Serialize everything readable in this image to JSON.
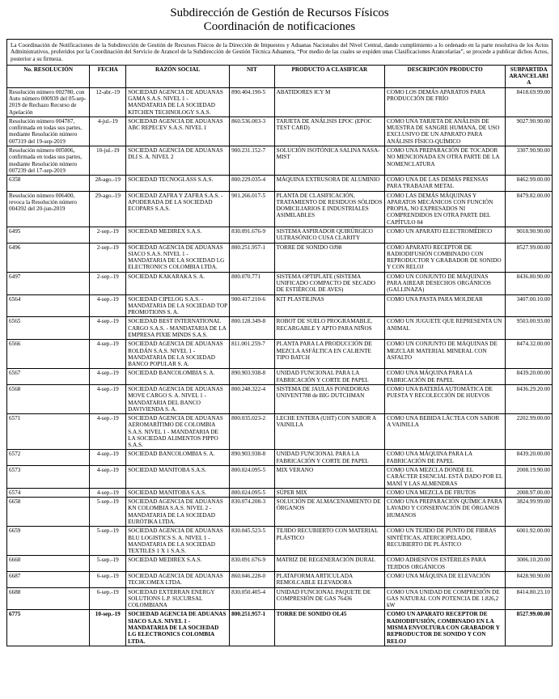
{
  "title": {
    "line1": "Subdirección de Gestión de Recursos Físicos",
    "line2": "Coordinación de notificaciones"
  },
  "intro": "La Coordinación de Notificaciones de la Subdirección de Gestión de Recursos Físicos de la Dirección de Impuestos y Aduanas Nacionales del Nivel Central, dando cumplimiento a lo ordenado en la parte resolutiva de los Actos Administrativos, proferidos por la Coordinación del Servicio de Arancel de la Subdirección de Gestión Técnica Aduanera, “Por medio de las cuales se expiden unas Clasificaciones Arancelarias”, se procede a publicar dichos Actos, posterior a su firmeza.",
  "headers": {
    "resolucion": "No. RESOLUCIÓN",
    "fecha": "FECHA",
    "razon": "RAZÓN SOCIAL",
    "nit": "NIT",
    "producto": "PRODUCTO A CLASIFICAR",
    "descripcion": "DESCRIPCIÓN PRODUCTO",
    "subpartida": "SUBPARTIDA ARANCELARIA"
  },
  "rows": [
    {
      "res": "Resolución número 002780, con Auto número 000939 del 05-sep-2019 de Rechazo Recurso de Apelación",
      "fecha": "12-abr.-19",
      "razon": "SOCIEDAD AGENCIA DE ADUANAS GAMA S.A.S. NIVEL 1 - MANDATARIA DE LA SOCIEDAD KITCHEN TECHNOLOGY S.A.S.",
      "nit": "890.404.190-5",
      "prod": "ABATIDORES ICY M",
      "desc": "COMO LOS DEMÁS APARATOS PARA PRODUCCIÓN DE FRÍO",
      "sub": "8418.69.99.00"
    },
    {
      "res": "Resolución número 004787, confirmada en todas sus partes, mediante Resolución número 007319 del 19-sep-2019",
      "fecha": "4-jul.-19",
      "razon": "SOCIEDAD AGENCIA DE ADUANAS ABC REPECEV S.A.S. NIVEL 1",
      "nit": "860.536.003-3",
      "prod": "TARJETA DE ANÁLISIS EPOC (EPOC TEST CARD)",
      "desc": "COMO UNA TARJETA DE ANÁLISIS DE MUESTRA DE SANGRE HUMANA, DE USO EXCLUSIVO DE UN APARATO PARA ANÁLISIS FÍSICO-QUÍMICO",
      "sub": "9027.90.90.00"
    },
    {
      "res": "Resolución número 005006, confirmada en todas sus partes, mediante Resolución número 007239 del 17-sep-2019",
      "fecha": "10-jul.-19",
      "razon": "SOCIEDAD AGENCIA DE ADUANAS DLI S. A. NIVEL 2",
      "nit": "900.231.152-7",
      "prod": "SOLUCIÓN ISOTÓNICA SALINA NASA-MIST",
      "desc": "COMO UNA PREPARACIÓN DE TOCADOR NO MENCIONADA EN OTRA PARTE DE LA NOMENCLATURA",
      "sub": "3307.90.90.00"
    },
    {
      "res": "6358",
      "fecha": "28-ago.-19",
      "razon": "SOCIEDAD TECNOGLASS S.A.S.",
      "nit": "800.229.035-4",
      "prod": "MÁQUINA EXTRUSORA DE ALUMINIO",
      "desc": "COMO UNA DE LAS DEMÁS PRENSAS PARA TRABAJAR METAL",
      "sub": "8462.99.00.00"
    },
    {
      "res": "Resolución número 006400, revoca la Resolución número 004392 del 20-jun-2019",
      "fecha": "29-ago.-19",
      "razon": "SOCIEDAD ZAFRA Y ZAFRA S.A.S. - APODERADA DE LA SOCIEDAD ECOPARS S.A.S.",
      "nit": "901.266.017-5",
      "prod": "PLANTA DE CLASIFICACIÓN, TRATAMIENTO DE RESIDUOS SÓLIDOS DOMICILIARIOS E INDUSTRIALES ASIMILABLES",
      "desc": "COMO LAS DEMÁS MÁQUINAS Y APARATOS MECÁNICOS CON FUNCIÓN PROPIA, NO EXPRESADOS NI COMPRENDIDOS EN OTRA PARTE DEL CAPÍTULO 84",
      "sub": "8479.82.00.00"
    },
    {
      "res": "6495",
      "fecha": "2-sep.-19",
      "razon": "SOCIEDAD MEDIREX S.A.S.",
      "nit": "830.091.676-9",
      "prod": "SISTEMA ASPIRADOR QUIRÚRGICO ULTRASÓNICO CUSA CLARITY",
      "desc": "COMO UN APARATO ELECTROMÉDICO",
      "sub": "9018.90.90.00"
    },
    {
      "res": "6496",
      "fecha": "2-sep.-19",
      "razon": "SOCIEDAD AGENCIA DE ADUANAS SIACO S.A.S. NIVEL 1 - MANDATARIA DE LA SOCIEDAD LG ELECTRONICS COLOMBIA LTDA.",
      "nit": "800.251.957-1",
      "prod": "TORRE DE SONIDO OJ98",
      "desc": "COMO APARATO RECEPTOR DE RADIODIFUSIÓN COMBINADO CON REPRODUCTOR Y GRABADOR DE SONIDO Y CON RELOJ",
      "sub": "8527.99.00.00"
    },
    {
      "res": "6497",
      "fecha": "2-sep.-19",
      "razon": "SOCIEDAD KAKARAKA S. A.",
      "nit": "800.070.771",
      "prod": "SISTEMA OPTIPLATE (SISTEMA UNIFICADO COMPACTO DE SECADO DE ESTIÉRCOL DE AVES)",
      "desc": "COMO UN CONJUNTO DE MÁQUINAS PARA AIREAR DESECHOS ORGÁNICOS (GALLINAZA)",
      "sub": "8436.80.90.00"
    },
    {
      "res": "6564",
      "fecha": "4-sep.-19",
      "razon": "SOCIEDAD CIPELOG S.A.S. - MANDATARIA DE LA SOCIEDAD TOP PROMOTIONS S. A.",
      "nit": "900.417.210-6",
      "prod": "KIT PLASTILINAS",
      "desc": "COMO UNA PASTA PARA MOLDEAR",
      "sub": "3407.00.10.00"
    },
    {
      "res": "6565",
      "fecha": "4-sep.-19",
      "razon": "SOCIEDAD BEST INTERNATIONAL CARGO S.A.S. - MANDATARIA DE LA EMPRESA PIXIE MINDS S.A.S.",
      "nit": "800.128.349-8",
      "prod": "ROBOT DE SUELO PROGRAMABLE, RECARGABLE Y APTO PARA NIÑOS",
      "desc": "COMO UN JUGUETE QUE REPRESENTA UN ANIMAL",
      "sub": "9503.00.93.00"
    },
    {
      "res": "6566",
      "fecha": "4-sep.-19",
      "razon": "SOCIEDAD AGENCIA DE ADUANAS ROLDÁN S.A.S. NIVEL 1 - MANDATARIA DE LA SOCIEDAD BANCO POPULAR S. A.",
      "nit": "811.001.259-7",
      "prod": "PLANTA PARA LA PRODUCCIÓN DE MEZCLA ASFÁLTICA EN CALIENTE TIPO BATCH",
      "desc": "COMO UN CONJUNTO DE MÁQUINAS DE MEZCLAR MATERIAL MINERAL CON ASFALTO",
      "sub": "8474.32.00.00"
    },
    {
      "res": "6567",
      "fecha": "4-sep.-19",
      "razon": "SOCIEDAD BANCOLOMBIA S. A.",
      "nit": "890.903.938-8",
      "prod": "UNIDAD FUNCIONAL PARA LA FABRICACIÓN Y CORTE DE PAPEL",
      "desc": "COMO UNA MÁQUINA PARA LA FABRICACIÓN DE PAPEL",
      "sub": "8439.20.00.00"
    },
    {
      "res": "6568",
      "fecha": "4-sep.-19",
      "razon": "SOCIEDAD AGENCIA DE ADUANAS MOVE CARGO S. A. NIVEL 1 - MANDATARIA DEL BANCO DAVIVIENDA S. A.",
      "nit": "800.248.322-4",
      "prod": "SISTEMA DE JAULAS PONEDORAS UNIVENT788 de BIG DUTCHMAN",
      "desc": "COMO UNA BATERÍA AUTOMÁTICA DE PUESTA Y RECOLECCIÓN DE HUEVOS",
      "sub": "8436.29.20.00"
    },
    {
      "res": "6571",
      "fecha": "4-sep.-19",
      "razon": "SOCIEDAD AGENCIA DE ADUANAS AEROMARÍTIMO DE COLOMBIA S.A.S. NIVEL 1 - MANDATARIA DE LA SOCIEDAD ALIMENTOS PIPPO S.A.S.",
      "nit": "800.035.023-2",
      "prod": "LECHE ENTERA (UHT) CON SABOR A VAINILLA",
      "desc": "COMO UNA BEBIDA LÁCTEA CON SABOR A VAINILLA",
      "sub": "2202.99.00.00"
    },
    {
      "res": "6572",
      "fecha": "4-sep.-19",
      "razon": "SOCIEDAD BANCOLOMBIA S. A.",
      "nit": "890.903.938-8",
      "prod": "UNIDAD FUNCIONAL PARA LA FABRICACIÓN Y CORTE DE PAPEL",
      "desc": "COMO UNA MÁQUINA PARA LA FABRICACIÓN DE PAPEL",
      "sub": "8439.20.00.00"
    },
    {
      "res": "6573",
      "fecha": "4-sep.-19",
      "razon": "SOCIEDAD MANITOBA S.A.S.",
      "nit": "800.024.095-5",
      "prod": "MIX VERANO",
      "desc": "COMO UNA MEZCLA DONDE EL CARÁCTER ESENCIAL ESTÁ DADO POR EL MANÍ Y LAS ALMENDRAS",
      "sub": "2008.19.90.00"
    },
    {
      "res": "6574",
      "fecha": "4-sep.-19",
      "razon": "SOCIEDAD MANITOBA S.A.S.",
      "nit": "800.024.095-5",
      "prod": "SÚPER MIX",
      "desc": "COMO UNA MEZCLA DE FRUTOS",
      "sub": "2008.97.00.00"
    },
    {
      "res": "6658",
      "fecha": "5-sep.-19",
      "razon": "SOCIEDAD AGENCIA DE ADUANAS KN COLOMBIA S.A.S. NIVEL 2 - MANDATARIA DE LA SOCIEDAD EURÓTIKA LTDA.",
      "nit": "830.074.208-3",
      "prod": "SOLUCIÓN DE ALMACENAMIENTO DE ÓRGANOS",
      "desc": "COMO UNA PREPARACIÓN QUÍMICA PARA LAVADO Y CONSERVACIÓN DE ÓRGANOS HUMANOS",
      "sub": "3824.99.99.00"
    },
    {
      "res": "6659",
      "fecha": "5-sep.-19",
      "razon": "SOCIEDAD AGENCIA DE ADUANAS BLU LOGISTICS S. A. NIVEL 1 - MANDATARIA DE LA SOCIEDAD TEXTILES 1 X 1 S.A.S.",
      "nit": "830.045.523-5",
      "prod": "TEJIDO RECUBIERTO CON MATERIAL PLÁSTICO",
      "desc": "COMO UN TEJIDO DE PUNTO DE FIBRAS SINTÉTICAS, ATERCIOPELADO, RECUBIERTO DE PLÁSTICO",
      "sub": "6001.92.00.00"
    },
    {
      "res": "6660",
      "fecha": "5-sep.-19",
      "razon": "SOCIEDAD MEDIREX S.A.S.",
      "nit": "830.091.676-9",
      "prod": "MATRIZ DE REGENERACIÓN DURAL",
      "desc": "COMO ADHESIVOS ESTÉRILES PARA TEJIDOS ORGÁNICOS",
      "sub": "3006.10.20.00"
    },
    {
      "res": "6687",
      "fecha": "6-sep.-19",
      "razon": "SOCIEDAD AGENCIA DE ADUANAS TECHCOMEX LTDA.",
      "nit": "860.046.228-0",
      "prod": "PLATAFORMA ARTICULADA REMOLCABLE ELEVADORA",
      "desc": "COMO UNA MÁQUINA DE ELEVACIÓN",
      "sub": "8428.90.90.00"
    },
    {
      "res": "6688",
      "fecha": "6-sep.-19",
      "razon": "SOCIEDAD EXTERRAN ENERGY SOLUTIONS L.P. SUCURSAL COLOMBIANA",
      "nit": "830.050.405-4",
      "prod": "UNIDAD FUNCIONAL PAQUETE DE COMPRESIÓN DE GAS 76436",
      "desc": "COMO UNA UNIDAD DE COMPRESIÓN DE GAS NATURAL CON POTENCIA DE 1.826,2 kW",
      "sub": "8414.80.23.10"
    },
    {
      "res": "6775",
      "fecha": "10-sep.-19",
      "razon": "SOCIEDAD AGENCIA DE ADUANAS SIACO S.A.S. NIVEL 1 - MANDATARIA DE LA SOCIEDAD LG ELECTRONICS COLOMBIA LTDA.",
      "nit": "800.251.957-1",
      "prod": "TORRE DE SONIDO OL45",
      "desc": "COMO UN APARATO RECEPTOR DE RADIODIFUSIÓN, COMBINADO EN LA MISMA ENVOLTURA CON GRABADOR Y REPRODUCTOR DE SONIDO Y CON RELOJ",
      "sub": "8527.99.00.00"
    }
  ]
}
